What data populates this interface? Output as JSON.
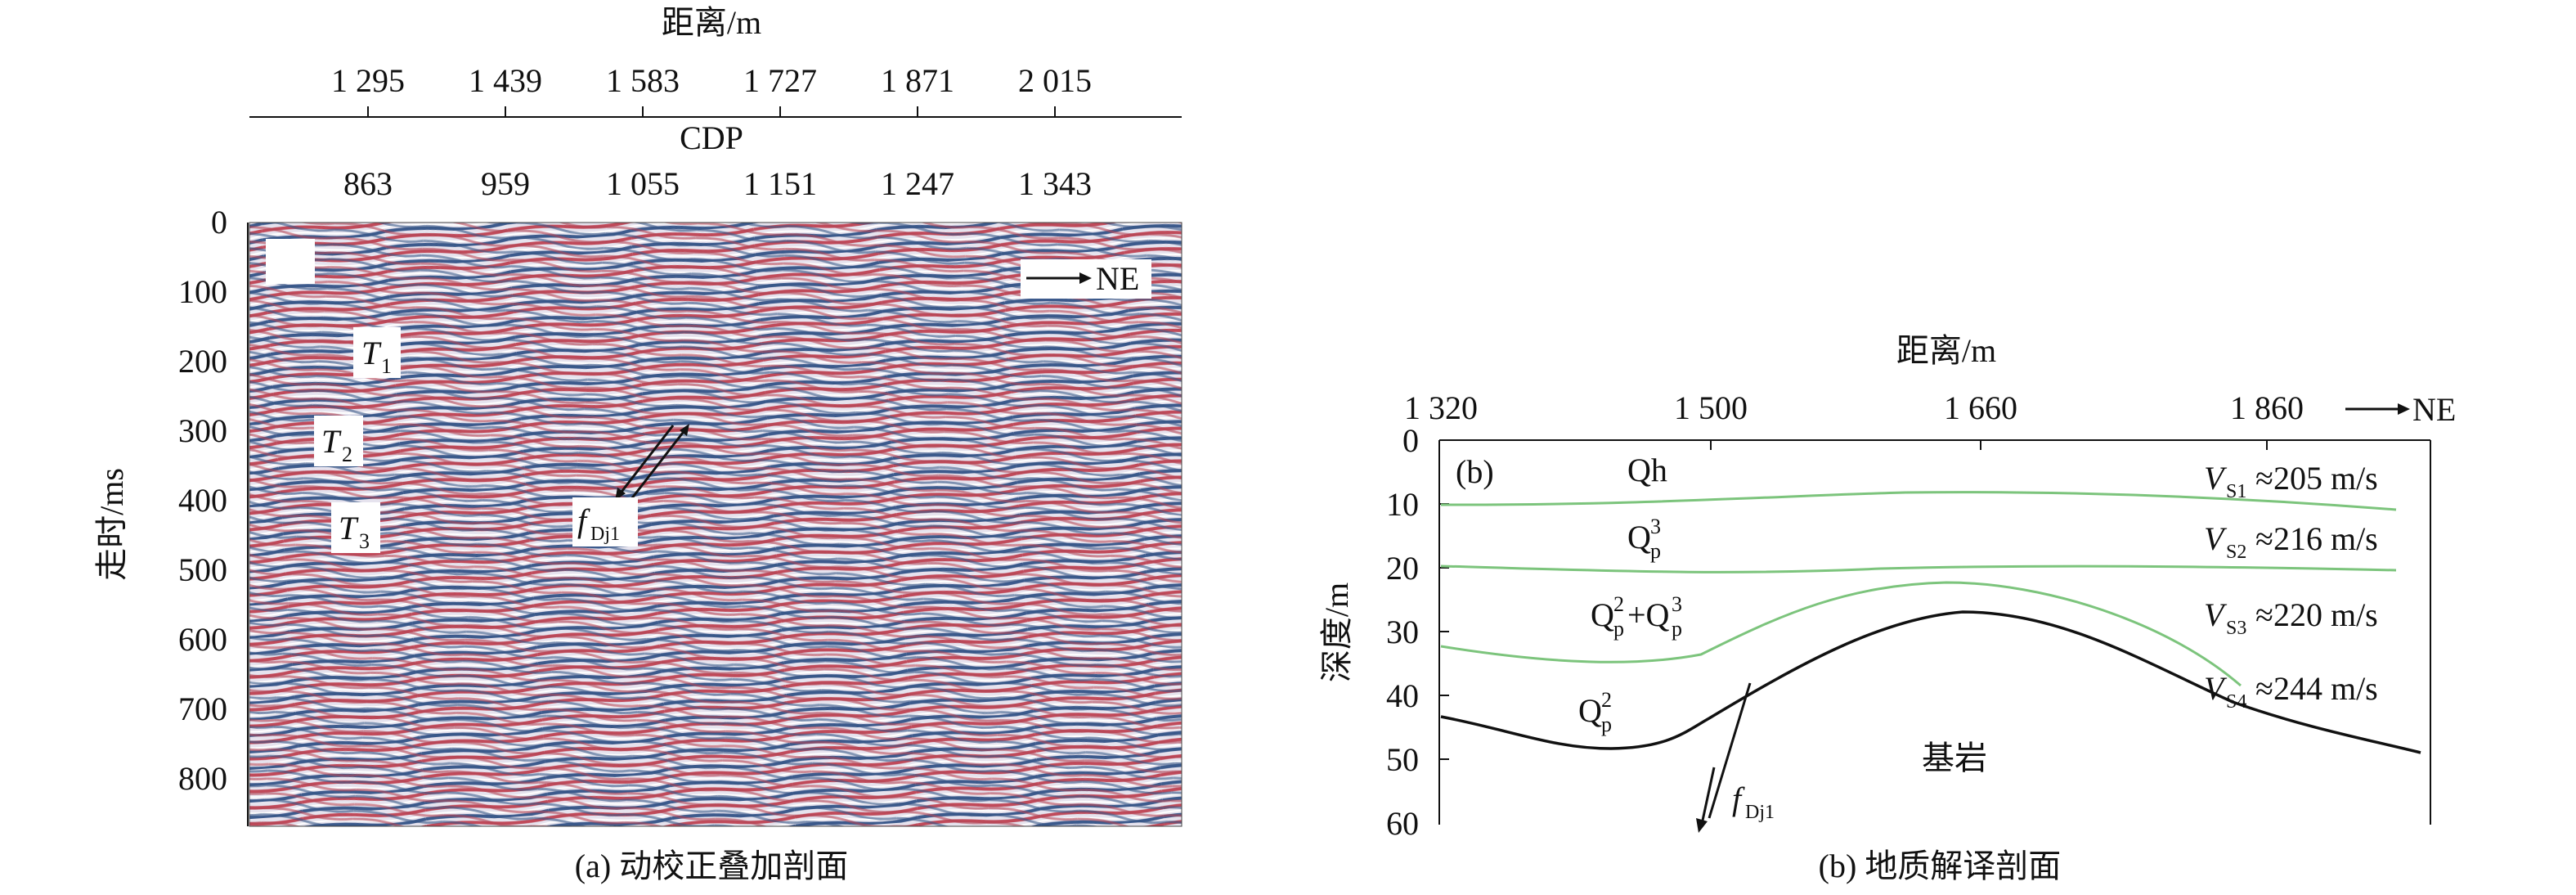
{
  "panel_a": {
    "top_axis_title": "距离/m",
    "top_ticks": [
      "1 295",
      "1 439",
      "1 583",
      "1 727",
      "1 871",
      "2 015"
    ],
    "cdp_title": "CDP",
    "cdp_ticks": [
      "863",
      "959",
      "1 055",
      "1 151",
      "1 247",
      "1 343"
    ],
    "y_title": "走时/ms",
    "y_ticks": [
      "0",
      "100",
      "200",
      "300",
      "400",
      "500",
      "600",
      "700",
      "800"
    ],
    "direction": "NE",
    "horizons": [
      {
        "name": "T",
        "sub": "1"
      },
      {
        "name": "T",
        "sub": "2"
      },
      {
        "name": "T",
        "sub": "3"
      }
    ],
    "fault": {
      "name": "f",
      "sub": "Dj1"
    },
    "caption": "(a) 动校正叠加剖面"
  },
  "panel_b": {
    "panel_label": "(b)",
    "x_title": "距离/m",
    "x_ticks": [
      "1 320",
      "1 500",
      "1 660",
      "1 860"
    ],
    "direction": "NE",
    "y_title": "深度/m",
    "y_ticks": [
      "0",
      "10",
      "20",
      "30",
      "40",
      "50",
      "60"
    ],
    "units": [
      {
        "main": "Qh",
        "sup": "",
        "sub": ""
      },
      {
        "main": "Q",
        "sup": "3",
        "sub": "p"
      },
      {
        "main": "Q",
        "sup": "2",
        "sub": "p",
        "main2": "+Q",
        "sup2": "3",
        "sub2": "p"
      },
      {
        "main": "Q",
        "sup": "2",
        "sub": "p"
      }
    ],
    "bedrock": "基岩",
    "velocities": [
      {
        "sym": "V",
        "sub": "S1",
        "text": "≈205 m/s"
      },
      {
        "sym": "V",
        "sub": "S2",
        "text": "≈216 m/s"
      },
      {
        "sym": "V",
        "sub": "S3",
        "text": "≈220 m/s"
      },
      {
        "sym": "V",
        "sub": "S4",
        "text": "≈244 m/s"
      }
    ],
    "fault": {
      "name": "f",
      "sub": "Dj1"
    },
    "colors": {
      "layer_boundary": "#7cc47c",
      "bedrock_boundary": "#111111"
    },
    "caption": "(b) 地质解译剖面"
  }
}
